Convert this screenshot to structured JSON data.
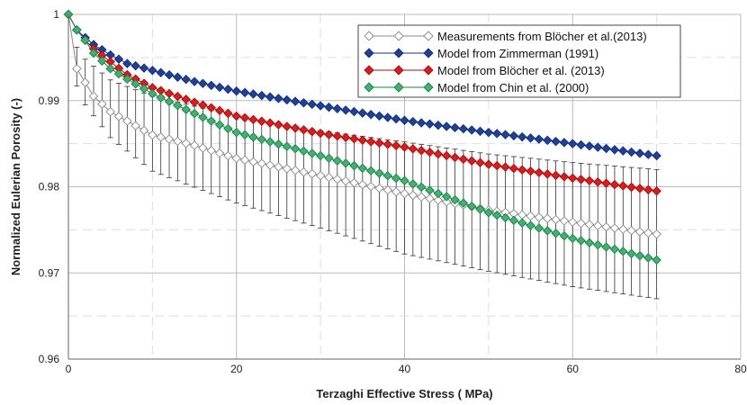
{
  "chart_data": {
    "type": "scatter",
    "title": "",
    "xlabel": "Terzaghi Effective Stress ( MPa)",
    "ylabel": "Normalized Eulerian Porosity (-)",
    "xlim": [
      0,
      80
    ],
    "ylim": [
      0.96,
      1.0
    ],
    "x_ticks": [
      0,
      20,
      40,
      60,
      80
    ],
    "y_ticks": [
      0.96,
      0.97,
      0.98,
      0.99,
      1
    ],
    "y_tick_labels": [
      "0.96",
      "0.97",
      "0.98",
      "0.99",
      "1"
    ],
    "grid": true,
    "legend_position": "top-right",
    "x_start": 0,
    "x_step": 1,
    "x_end": 70,
    "series": [
      {
        "name": "Measurements from Blöcher et al.(2013)",
        "color": "#ffffff",
        "stroke": "#888888",
        "marker": "diamond-open",
        "error_bars": true,
        "anchors": [
          [
            0,
            1.0
          ],
          [
            1,
            0.9937
          ],
          [
            3,
            0.9905
          ],
          [
            5,
            0.9887
          ],
          [
            10,
            0.986
          ],
          [
            15,
            0.9848
          ],
          [
            20,
            0.9833
          ],
          [
            30,
            0.9813
          ],
          [
            40,
            0.9792
          ],
          [
            50,
            0.9773
          ],
          [
            60,
            0.9759
          ],
          [
            70,
            0.9745
          ]
        ],
        "err_low_anchors": [
          [
            1,
            0.9917
          ],
          [
            2,
            0.9895
          ],
          [
            5,
            0.9857
          ],
          [
            10,
            0.9818
          ],
          [
            20,
            0.9781
          ],
          [
            30,
            0.9752
          ],
          [
            40,
            0.9722
          ],
          [
            50,
            0.9702
          ],
          [
            60,
            0.9684
          ],
          [
            70,
            0.967
          ]
        ],
        "err_high_anchors": [
          [
            1,
            0.9962
          ],
          [
            2,
            0.9948
          ],
          [
            5,
            0.9924
          ],
          [
            10,
            0.9905
          ],
          [
            20,
            0.9882
          ],
          [
            30,
            0.9865
          ],
          [
            40,
            0.9852
          ],
          [
            50,
            0.9838
          ],
          [
            60,
            0.9828
          ],
          [
            70,
            0.982
          ]
        ]
      },
      {
        "name": "Model from Zimmerman (1991)",
        "color": "#1f3f99",
        "stroke": "#14307a",
        "marker": "diamond",
        "anchors": [
          [
            0,
            1.0
          ],
          [
            1,
            0.9982
          ],
          [
            2,
            0.9973
          ],
          [
            3,
            0.9965
          ],
          [
            5,
            0.9953
          ],
          [
            7,
            0.9943
          ],
          [
            10,
            0.9935
          ],
          [
            15,
            0.9922
          ],
          [
            20,
            0.9911
          ],
          [
            30,
            0.9894
          ],
          [
            40,
            0.9877
          ],
          [
            50,
            0.9863
          ],
          [
            60,
            0.985
          ],
          [
            70,
            0.9836
          ]
        ]
      },
      {
        "name": "Model from Blöcher et al. (2013)",
        "color": "#e01a1a",
        "stroke": "#a01010",
        "marker": "diamond",
        "anchors": [
          [
            0,
            1.0
          ],
          [
            1,
            0.9982
          ],
          [
            2,
            0.997
          ],
          [
            3,
            0.996
          ],
          [
            5,
            0.9945
          ],
          [
            7,
            0.993
          ],
          [
            10,
            0.9915
          ],
          [
            15,
            0.9898
          ],
          [
            20,
            0.9882
          ],
          [
            30,
            0.9862
          ],
          [
            40,
            0.9846
          ],
          [
            50,
            0.9826
          ],
          [
            60,
            0.981
          ],
          [
            70,
            0.9795
          ]
        ]
      },
      {
        "name": "Model from Chin et al. (2000)",
        "color": "#3cb371",
        "stroke": "#1f7f45",
        "marker": "diamond",
        "anchors": [
          [
            0,
            1.0
          ],
          [
            1,
            0.9982
          ],
          [
            2,
            0.997
          ],
          [
            3,
            0.9955
          ],
          [
            5,
            0.9937
          ],
          [
            7,
            0.9925
          ],
          [
            10,
            0.9908
          ],
          [
            15,
            0.9885
          ],
          [
            20,
            0.9863
          ],
          [
            30,
            0.9836
          ],
          [
            40,
            0.9807
          ],
          [
            50,
            0.977
          ],
          [
            60,
            0.974
          ],
          [
            70,
            0.9715
          ]
        ]
      }
    ]
  }
}
